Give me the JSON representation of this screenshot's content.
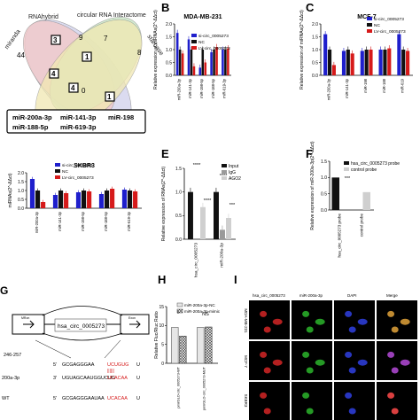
{
  "panel_letters": [
    "B",
    "C",
    "E",
    "F",
    "H",
    "I"
  ],
  "venn": {
    "sets": [
      "RNAhybrid",
      "circular RNA Interactome",
      "miranda",
      "starbase"
    ],
    "counts": [
      "44",
      "3",
      "7",
      "9",
      "8",
      "1",
      "4",
      "0",
      "4",
      "1"
    ],
    "mirs_line1": [
      "miR-200a-3p",
      "miR-141-3p",
      "miR-198"
    ],
    "mirs_line2": [
      "miR-188-5p",
      "miR-619-3p"
    ]
  },
  "colors": {
    "blue": "#1f1fcc",
    "black": "#111111",
    "red": "#d61a1a",
    "gray": "#9a9a9a",
    "lightgray": "#cfcfcf"
  },
  "mir_categories": [
    "miR-200a-3p",
    "miR-141-3p",
    "miR-198-5p",
    "miR-188-5p",
    "miR-619-3p"
  ],
  "chart_data": [
    {
      "type": "bar",
      "title": "MDA-MB-231",
      "ylabel": "Relative expression of miRNAs(2^-ΔΔct)",
      "categories": [
        "miR-200a-3p",
        "miR-141-3p",
        "miR-198-5p",
        "miR-188-5p",
        "miR-619-3p"
      ],
      "ylim": [
        0,
        2.0
      ],
      "yticks": [
        "0.0",
        "0.5",
        "1.0",
        "1.5",
        "2.0"
      ],
      "series": [
        {
          "name": "si-circ_0005273",
          "values": [
            1.65,
            1.4,
            0.3,
            0.9,
            1.0
          ]
        },
        {
          "name": "NC",
          "values": [
            1.0,
            1.0,
            1.0,
            1.0,
            1.0
          ]
        },
        {
          "name": "LV-circ_0005273",
          "values": [
            0.85,
            0.35,
            0.5,
            1.1,
            1.05
          ]
        }
      ]
    },
    {
      "type": "bar",
      "title": "MCF-7",
      "ylabel": "Relative expression of miRNAs(2^-ΔΔct)",
      "categories": [
        "miR-200a-3p",
        "miR-141-3p",
        "miR-198",
        "miR-188",
        "miR-619"
      ],
      "ylim": [
        0,
        2.0
      ],
      "yticks": [
        "0.0",
        "0.5",
        "1.0",
        "1.5",
        "2.0"
      ],
      "series": [
        {
          "name": "si-circ_0005273",
          "values": [
            1.6,
            0.95,
            0.95,
            1.0,
            1.6
          ]
        },
        {
          "name": "NC",
          "values": [
            1.0,
            1.0,
            1.0,
            1.0,
            1.0
          ]
        },
        {
          "name": "LV-circ_0005273",
          "values": [
            0.4,
            0.85,
            1.0,
            1.05,
            0.95
          ]
        }
      ]
    },
    {
      "type": "bar",
      "title": "SKBR3",
      "ylabel": "miRNAs(2^-ΔΔct)",
      "categories": [
        "miR-200a-3p",
        "miR-141-3p",
        "miR-198-5p",
        "miR-188-5p",
        "miR-619-3p"
      ],
      "ylim": [
        0,
        2.0
      ],
      "yticks": [
        "0.0",
        "0.5",
        "1.0",
        "1.5",
        "2.0"
      ],
      "series": [
        {
          "name": "si-circ_0005273",
          "values": [
            1.65,
            0.75,
            0.9,
            0.8,
            1.05
          ]
        },
        {
          "name": "NC",
          "values": [
            1.0,
            1.0,
            1.0,
            1.0,
            1.0
          ]
        },
        {
          "name": "LV-circ_0005273",
          "values": [
            0.35,
            0.85,
            0.95,
            1.1,
            0.95
          ]
        }
      ]
    },
    {
      "type": "bar",
      "title": "",
      "ylabel": "Relative expression of RNAs(2^-ΔΔct)",
      "categories": [
        "hsa_circ_0005273",
        "miR-200a-3p"
      ],
      "ylim": [
        0,
        1.5
      ],
      "yticks": [
        "0.0",
        "0.5",
        "1.0",
        "1.5"
      ],
      "series": [
        {
          "name": "Input",
          "values": [
            1.0,
            1.0
          ]
        },
        {
          "name": "IgG",
          "values": [
            0.0,
            0.2
          ]
        },
        {
          "name": "AGO2",
          "values": [
            0.68,
            0.45
          ]
        }
      ],
      "annotations": [
        "****",
        "****",
        "****",
        "***"
      ]
    },
    {
      "type": "bar",
      "title": "",
      "ylabel": "Relative expression of miR-200a-3p(2^-ΔΔct)",
      "categories": [
        "hsa_circ_0005273 probe",
        "control probe"
      ],
      "ylim": [
        0,
        1.5
      ],
      "yticks": [
        "0.0",
        "0.5",
        "1.0",
        "1.5"
      ],
      "series": [
        {
          "name": "hsa_circ_0005273 probe",
          "values": [
            1.0,
            0
          ]
        },
        {
          "name": "control probe",
          "values": [
            0,
            0.55
          ]
        }
      ],
      "annotations": [
        "***"
      ]
    },
    {
      "type": "bar",
      "title": "",
      "ylabel": "Relative Fluc/Rluc Ratio",
      "categories": [
        "pmirGLO-circ_0005273-WT",
        "pmirGLO-circ_0005273-MUT"
      ],
      "ylim": [
        0,
        15
      ],
      "yticks": [
        "0",
        "5",
        "10",
        "15"
      ],
      "series": [
        {
          "name": "miR-200a-3p-NC",
          "values": [
            9.5,
            9.5
          ]
        },
        {
          "name": "miR-200a-3p-mimic",
          "values": [
            7.2,
            9.6
          ]
        }
      ],
      "annotations": [
        "*",
        "NS"
      ]
    }
  ],
  "panel_g": {
    "gene_label": "hsa_circ_0005273",
    "site_label": "246-257",
    "row1_prefix": "5'",
    "row1_seq": "GCGAGGGAA",
    "row1_site": "UCUGUG",
    "row1_suffix": "U",
    "row2_name": "200a-3p",
    "row2_prefix": "3'",
    "row2_seq": "UGUAGCAAUGGUCUG",
    "row2_site": "UCACAA",
    "row2_suffix": "U",
    "row3_name": "WT",
    "row3_prefix": "5'",
    "row3_seq": "GCGAGGGAAUAA",
    "row3_site": "UCACAA",
    "row3_suffix": "U",
    "exon_labels": [
      "MRon",
      "Exon"
    ]
  },
  "panel_i": {
    "columns": [
      "hsa_circ_0005273",
      "miR-200a-3p",
      "DAPI",
      "Merge"
    ],
    "rows": [
      "MDA-MB-231",
      "MCF-7",
      "SKBR3"
    ]
  }
}
